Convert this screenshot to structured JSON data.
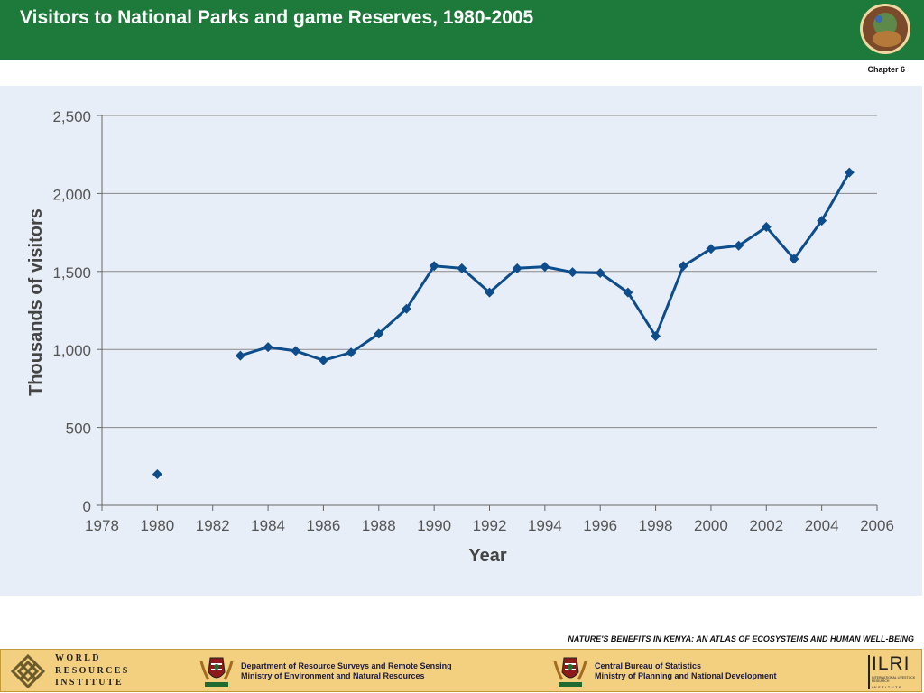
{
  "header": {
    "title": "Visitors to National Parks and game Reserves, 1980-2005",
    "chapter": "Chapter 6"
  },
  "colors": {
    "header_bg": "#1e7a3a",
    "chart_bg": "#e8eef7",
    "series": "#0d4d8c",
    "grid": "#888888",
    "footer_bg": "#f3cf80"
  },
  "chart_data": {
    "type": "line",
    "title": "",
    "xlabel": "Year",
    "ylabel": "Thousands of visitors",
    "xlim": [
      1978,
      2006
    ],
    "ylim": [
      0,
      2500
    ],
    "x_ticks": [
      1978,
      1980,
      1982,
      1984,
      1986,
      1988,
      1990,
      1992,
      1994,
      1996,
      1998,
      2000,
      2002,
      2004,
      2006
    ],
    "y_ticks": [
      0,
      500,
      1000,
      1500,
      2000,
      2500
    ],
    "y_tick_labels": [
      "0",
      "500",
      "1,000",
      "1,500",
      "2,000",
      "2,500"
    ],
    "grid": "horizontal",
    "legend": "none",
    "marker": "diamond",
    "series": [
      {
        "x": [
          1980,
          1983,
          1984,
          1985,
          1986,
          1987,
          1988,
          1989,
          1990,
          1991,
          1992,
          1993,
          1994,
          1995,
          1996,
          1997,
          1998,
          1999,
          2000,
          2001,
          2002,
          2003,
          2004,
          2005
        ],
        "values": [
          200,
          960,
          1015,
          990,
          930,
          980,
          1100,
          1260,
          1535,
          1520,
          1365,
          1520,
          1530,
          1495,
          1490,
          1365,
          1085,
          1535,
          1645,
          1665,
          1785,
          1580,
          1825,
          2135
        ],
        "line_breaks_after_x": [
          1980
        ]
      }
    ]
  },
  "footer": {
    "atlas_title": "NATURE'S BENEFITS IN KENYA: AN ATLAS OF ECOSYSTEMS AND HUMAN WELL-BEING",
    "wri_line1": "WORLD",
    "wri_line2": "RESOURCES",
    "wri_line3": "INSTITUTE",
    "dept1_line1": "Department of Resource Surveys and Remote Sensing",
    "dept1_line2": "Ministry of Environment and Natural Resources",
    "dept2_line1": "Central Bureau of Statistics",
    "dept2_line2": "Ministry of Planning and National Development",
    "ilri_name": "ILRI",
    "ilri_sub": "INTERNATIONAL LIVESTOCK RESEARCH",
    "ilri_institute": "INSTITUTE"
  }
}
